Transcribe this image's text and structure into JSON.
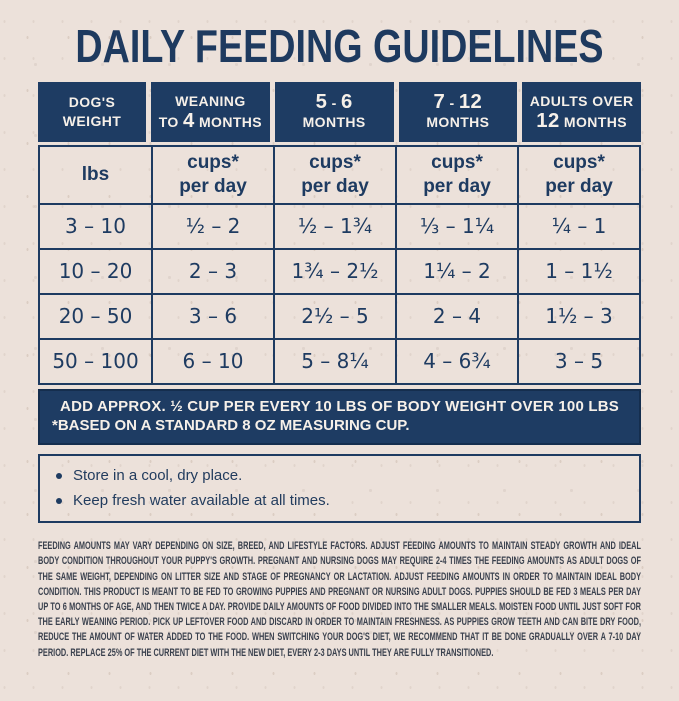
{
  "page": {
    "title": "DAILY FEEDING GUIDELINES",
    "background_color": "#ece1da",
    "navy_color": "#1e3c63"
  },
  "table": {
    "header": [
      {
        "line1": "DOG'S",
        "line2": "WEIGHT"
      },
      {
        "line1": "WEANING",
        "line2": "TO 4 MONTHS"
      },
      {
        "line1": "5 - 6",
        "line2": "MONTHS"
      },
      {
        "line1": "7 - 12",
        "line2": "MONTHS"
      },
      {
        "line1": "ADULTS OVER",
        "line2": "12 MONTHS"
      }
    ],
    "units": [
      {
        "line1": "lbs",
        "line2": ""
      },
      {
        "line1": "cups*",
        "line2": "per day"
      },
      {
        "line1": "cups*",
        "line2": "per day"
      },
      {
        "line1": "cups*",
        "line2": "per day"
      },
      {
        "line1": "cups*",
        "line2": "per day"
      }
    ],
    "rows": [
      {
        "cells": [
          "3 – 10",
          "½ – 2",
          "½ – 1¾",
          "⅓ – 1¼",
          "¼ – 1"
        ]
      },
      {
        "cells": [
          "10 – 20",
          "2 – 3",
          "1¾ – 2½",
          "1¼ – 2",
          "1 – 1½"
        ]
      },
      {
        "cells": [
          "20 – 50",
          "3 – 6",
          "2½ – 5",
          "2 – 4",
          "1½ – 3"
        ]
      },
      {
        "cells": [
          "50 – 100",
          "6 – 10",
          "5 – 8¼",
          "4 – 6¾",
          "3 – 5"
        ]
      }
    ]
  },
  "note_bar": {
    "line1": "ADD APPROX. ½ CUP PER EVERY 10 LBS OF BODY WEIGHT OVER 100 LBS",
    "line2": "*BASED ON A STANDARD 8 OZ MEASURING CUP."
  },
  "tips": {
    "items": [
      "Store in a cool, dry place.",
      "Keep fresh water available at all times."
    ]
  },
  "fine_print": "FEEDING AMOUNTS MAY VARY DEPENDING ON SIZE, BREED, AND LIFESTYLE FACTORS. ADJUST FEEDING AMOUNTS TO MAINTAIN STEADY GROWTH AND IDEAL BODY CONDITION THROUGHOUT YOUR PUPPY'S GROWTH. PREGNANT AND NURSING DOGS MAY REQUIRE 2-4 TIMES THE FEEDING AMOUNTS AS ADULT DOGS OF THE SAME WEIGHT, DEPENDING ON LITTER SIZE AND STAGE OF PREGNANCY OR LACTATION. ADJUST FEEDING AMOUNTS IN ORDER TO MAINTAIN IDEAL BODY CONDITION. THIS PRODUCT IS MEANT TO BE FED TO GROWING PUPPIES AND PREGNANT OR NURSING ADULT DOGS. PUPPIES SHOULD BE FED 3 MEALS PER DAY UP TO 6 MONTHS OF AGE, AND THEN TWICE A DAY. PROVIDE DAILY AMOUNTS OF FOOD DIVIDED INTO THE SMALLER MEALS. MOISTEN FOOD UNTIL JUST SOFT FOR THE EARLY WEANING PERIOD. PICK UP LEFTOVER FOOD AND DISCARD IN ORDER TO MAINTAIN FRESHNESS. AS PUPPIES GROW TEETH AND CAN BITE DRY FOOD, REDUCE THE AMOUNT OF WATER ADDED TO THE FOOD. WHEN SWITCHING YOUR DOG'S DIET, WE RECOMMEND THAT IT BE DONE GRADUALLY OVER A 7-10 DAY PERIOD. REPLACE 25% OF THE CURRENT DIET WITH THE NEW DIET, EVERY 2-3 DAYS UNTIL THEY ARE FULLY TRANSITIONED."
}
